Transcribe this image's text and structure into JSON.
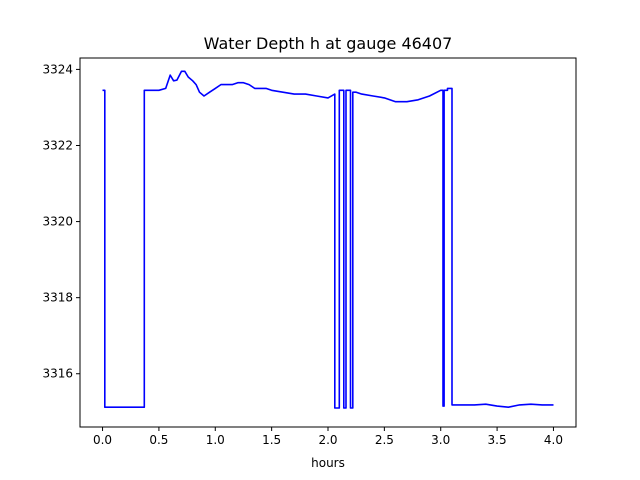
{
  "chart_data": {
    "type": "line",
    "title": "Water Depth h at gauge 46407",
    "xlabel": "hours",
    "ylabel": "",
    "xlim": [
      -0.2,
      4.2
    ],
    "ylim": [
      3314.6,
      3324.3
    ],
    "xticks": [
      0.0,
      0.5,
      1.0,
      1.5,
      2.0,
      2.5,
      3.0,
      3.5,
      4.0
    ],
    "xtick_labels": [
      "0.0",
      "0.5",
      "1.0",
      "1.5",
      "2.0",
      "2.5",
      "3.0",
      "3.5",
      "4.0"
    ],
    "yticks": [
      3316,
      3318,
      3320,
      3322,
      3324
    ],
    "ytick_labels": [
      "3316",
      "3318",
      "3320",
      "3322",
      "3324"
    ],
    "grid": false,
    "legend": false,
    "series": [
      {
        "color": "#0000ff",
        "x": [
          0.0,
          0.02,
          0.02,
          0.1,
          0.2,
          0.3,
          0.37,
          0.37,
          0.42,
          0.5,
          0.56,
          0.6,
          0.63,
          0.66,
          0.7,
          0.73,
          0.76,
          0.8,
          0.83,
          0.86,
          0.9,
          0.95,
          1.0,
          1.05,
          1.1,
          1.15,
          1.2,
          1.25,
          1.3,
          1.35,
          1.4,
          1.45,
          1.5,
          1.6,
          1.7,
          1.8,
          1.9,
          2.0,
          2.06,
          2.06,
          2.1,
          2.1,
          2.14,
          2.14,
          2.16,
          2.16,
          2.2,
          2.2,
          2.22,
          2.22,
          2.25,
          2.25,
          2.3,
          2.4,
          2.5,
          2.6,
          2.7,
          2.8,
          2.9,
          3.0,
          3.02,
          3.02,
          3.03,
          3.03,
          3.06,
          3.06,
          3.1,
          3.1,
          3.2,
          3.3,
          3.4,
          3.5,
          3.6,
          3.7,
          3.8,
          3.9,
          4.0
        ],
        "y": [
          3323.45,
          3323.45,
          3315.12,
          3315.12,
          3315.12,
          3315.12,
          3315.12,
          3323.45,
          3323.45,
          3323.45,
          3323.5,
          3323.85,
          3323.7,
          3323.72,
          3323.95,
          3323.95,
          3323.8,
          3323.7,
          3323.6,
          3323.4,
          3323.3,
          3323.4,
          3323.5,
          3323.6,
          3323.6,
          3323.6,
          3323.65,
          3323.65,
          3323.6,
          3323.5,
          3323.5,
          3323.5,
          3323.45,
          3323.4,
          3323.35,
          3323.35,
          3323.3,
          3323.25,
          3323.35,
          3315.1,
          3315.1,
          3323.45,
          3323.45,
          3315.1,
          3315.1,
          3323.45,
          3323.45,
          3315.1,
          3315.1,
          3323.4,
          3323.4,
          3323.4,
          3323.35,
          3323.3,
          3323.25,
          3323.15,
          3323.15,
          3323.2,
          3323.3,
          3323.45,
          3323.45,
          3315.15,
          3315.15,
          3323.45,
          3323.45,
          3323.5,
          3323.5,
          3315.18,
          3315.18,
          3315.18,
          3315.2,
          3315.15,
          3315.12,
          3315.18,
          3315.2,
          3315.18,
          3315.18
        ]
      }
    ]
  }
}
